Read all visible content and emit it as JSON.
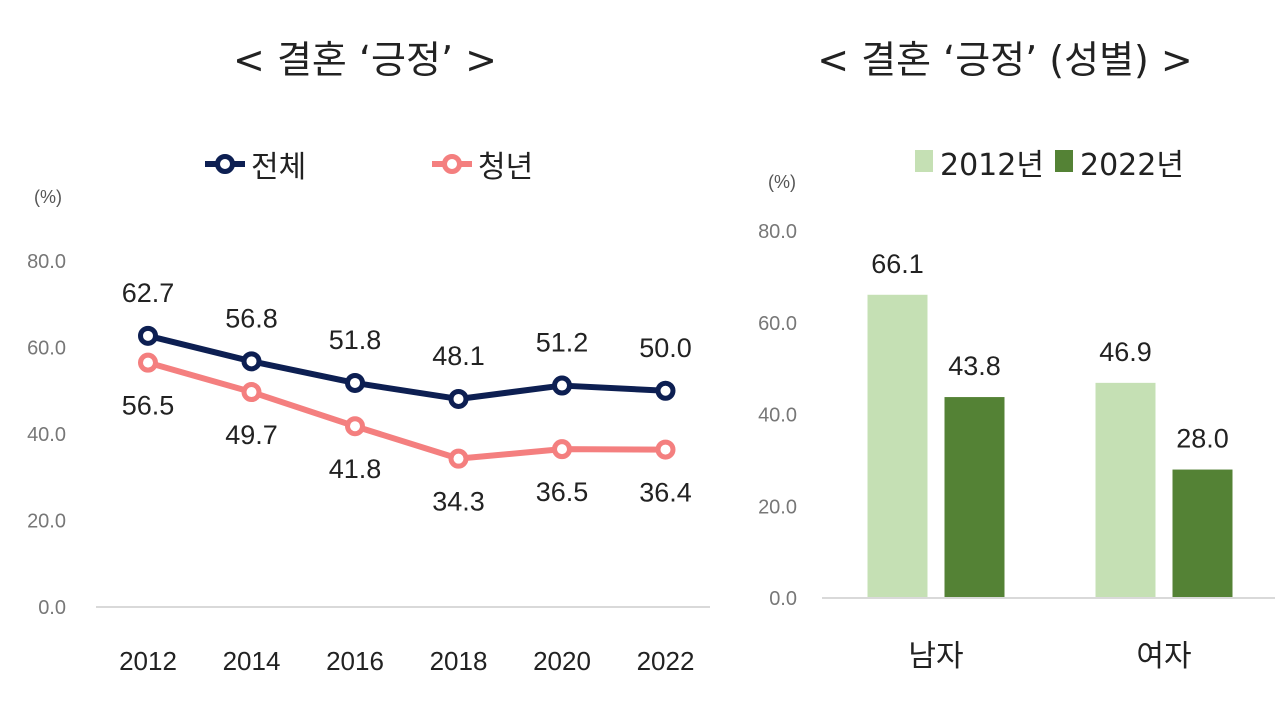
{
  "colors": {
    "total": "#0d1f52",
    "youth": "#f47f7f",
    "y2012": "#c5e0b4",
    "y2022": "#548235",
    "axis": "#d9d9d9"
  },
  "chart_data": [
    {
      "type": "line",
      "title": "< 결혼 ‘긍정’ >",
      "unit": "(%)",
      "categories": [
        "2012",
        "2014",
        "2016",
        "2018",
        "2020",
        "2022"
      ],
      "series": [
        {
          "name": "전체",
          "values": [
            62.7,
            56.8,
            51.8,
            48.1,
            51.2,
            50.0
          ]
        },
        {
          "name": "청년",
          "values": [
            56.5,
            49.7,
            41.8,
            34.3,
            36.5,
            36.4
          ]
        }
      ],
      "ylim": [
        0,
        80
      ],
      "yticks": [
        "0.0",
        "20.0",
        "40.0",
        "60.0",
        "80.0"
      ],
      "legend": "top"
    },
    {
      "type": "bar",
      "title": "< 결혼 ‘긍정’ (성별) >",
      "unit": "(%)",
      "categories": [
        "남자",
        "여자"
      ],
      "series": [
        {
          "name": "2012년",
          "values": [
            66.1,
            46.9
          ]
        },
        {
          "name": "2022년",
          "values": [
            43.8,
            28.0
          ]
        }
      ],
      "ylim": [
        0,
        80
      ],
      "yticks": [
        "0.0",
        "20.0",
        "40.0",
        "60.0",
        "80.0"
      ],
      "legend": "top"
    }
  ]
}
